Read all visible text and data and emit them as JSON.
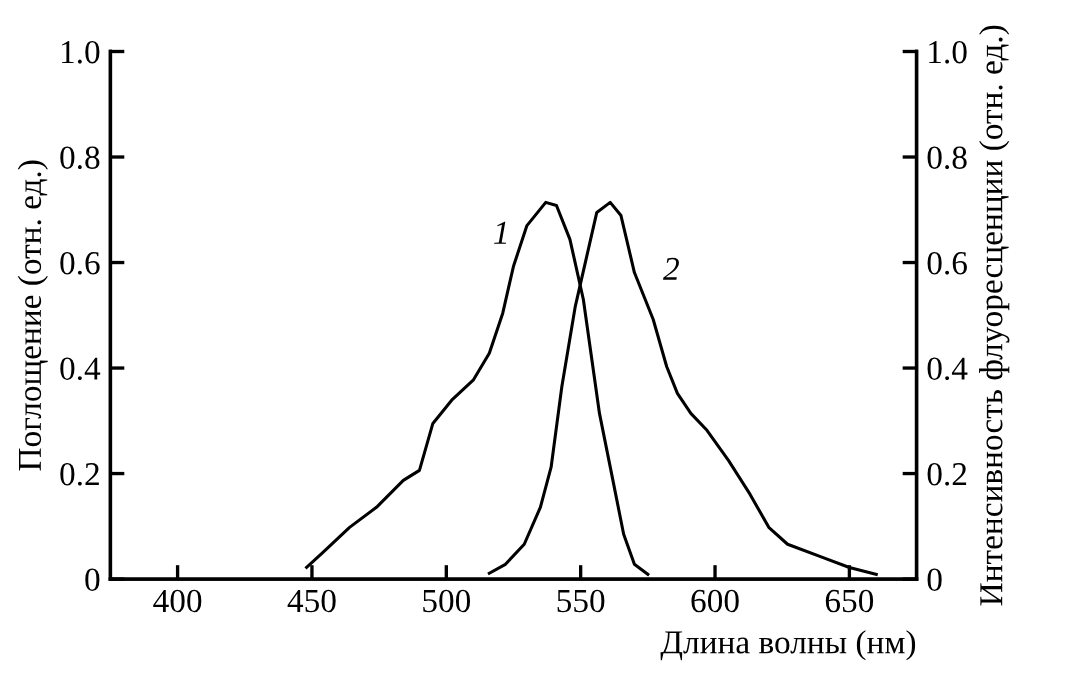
{
  "chart_data": {
    "type": "line",
    "xlabel": "Длина волны (нм)",
    "ylabel": "Поглощение (отн. ед.)",
    "y2label": "Интенсивность флуоресценции (отн. ед.)",
    "xlim": [
      375,
      675
    ],
    "xticks": [
      400,
      450,
      500,
      550,
      600,
      650
    ],
    "ylim": [
      0,
      1
    ],
    "yticks": [
      0,
      0.2,
      0.4,
      0.6,
      0.8,
      {
        "value": 1,
        "label": "1.0"
      }
    ],
    "y2lim": [
      0,
      1
    ],
    "y2ticks": [
      0,
      0.2,
      0.4,
      0.6,
      0.8,
      {
        "value": 1,
        "label": "1.0"
      }
    ],
    "grid": false,
    "legend": false,
    "marker": "none",
    "line_style": "solid",
    "series": [
      {
        "name": "1",
        "color": "#000000",
        "x": [
          448,
          454,
          464,
          474,
          484,
          490,
          495,
          502,
          510,
          516,
          521,
          525,
          530,
          537,
          541,
          546,
          551,
          557,
          562,
          566,
          570,
          575
        ],
        "values": [
          0.022,
          0.05,
          0.098,
          0.136,
          0.187,
          0.206,
          0.295,
          0.339,
          0.377,
          0.428,
          0.504,
          0.593,
          0.67,
          0.714,
          0.708,
          0.644,
          0.53,
          0.314,
          0.187,
          0.085,
          0.028,
          0.009
        ]
      },
      {
        "name": "2",
        "color": "#000000",
        "x": [
          516,
          522,
          529,
          535,
          539,
          543,
          548,
          552,
          556,
          561,
          565,
          570,
          577,
          582,
          586,
          591,
          597,
          605,
          613,
          620,
          627,
          640,
          650,
          660
        ],
        "values": [
          0.011,
          0.028,
          0.066,
          0.136,
          0.212,
          0.365,
          0.517,
          0.606,
          0.695,
          0.714,
          0.689,
          0.581,
          0.492,
          0.403,
          0.352,
          0.314,
          0.282,
          0.225,
          0.161,
          0.098,
          0.066,
          0.041,
          0.022,
          0.009
        ]
      }
    ]
  }
}
